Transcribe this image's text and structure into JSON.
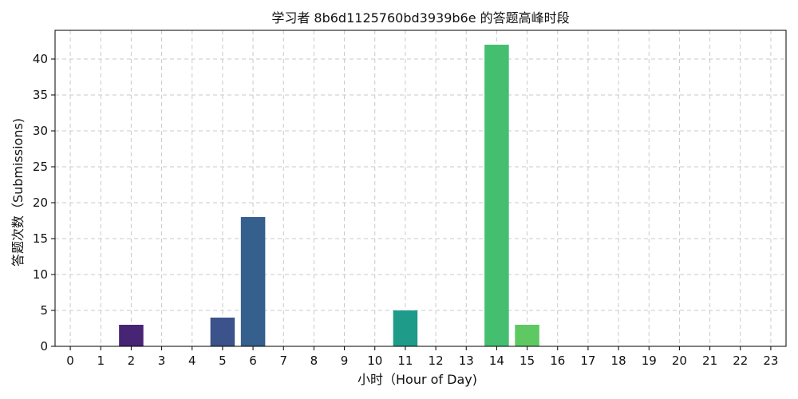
{
  "chart_data": {
    "type": "bar",
    "title": "学习者 8b6d1125760bd3939b6e 的答题高峰时段",
    "xlabel": "小时（Hour of Day)",
    "ylabel": "答题次数（Submissions)",
    "categories": [
      "0",
      "1",
      "2",
      "3",
      "4",
      "5",
      "6",
      "7",
      "8",
      "9",
      "10",
      "11",
      "12",
      "13",
      "14",
      "15",
      "16",
      "17",
      "18",
      "19",
      "20",
      "21",
      "22",
      "23"
    ],
    "values": [
      0,
      0,
      3,
      0,
      0,
      4,
      18,
      0,
      0,
      0,
      0,
      5,
      0,
      0,
      42,
      3,
      0,
      0,
      0,
      0,
      0,
      0,
      0,
      0
    ],
    "bar_colors": [
      "#440154",
      "#471365",
      "#482475",
      "#463480",
      "#414487",
      "#3b528b",
      "#355f8d",
      "#2f6c8e",
      "#2a788e",
      "#25848e",
      "#21918c",
      "#1e9c89",
      "#22a884",
      "#2fb47c",
      "#44bf70",
      "#5ec962",
      "#7ad151",
      "#9bd93c",
      "#bddf26",
      "#dfe318",
      "#f0e51c",
      "#fde725",
      "#fde725",
      "#fde725"
    ],
    "ylim": [
      0,
      44
    ],
    "yticks": [
      0,
      5,
      10,
      15,
      20,
      25,
      30,
      35,
      40
    ],
    "grid": true
  }
}
